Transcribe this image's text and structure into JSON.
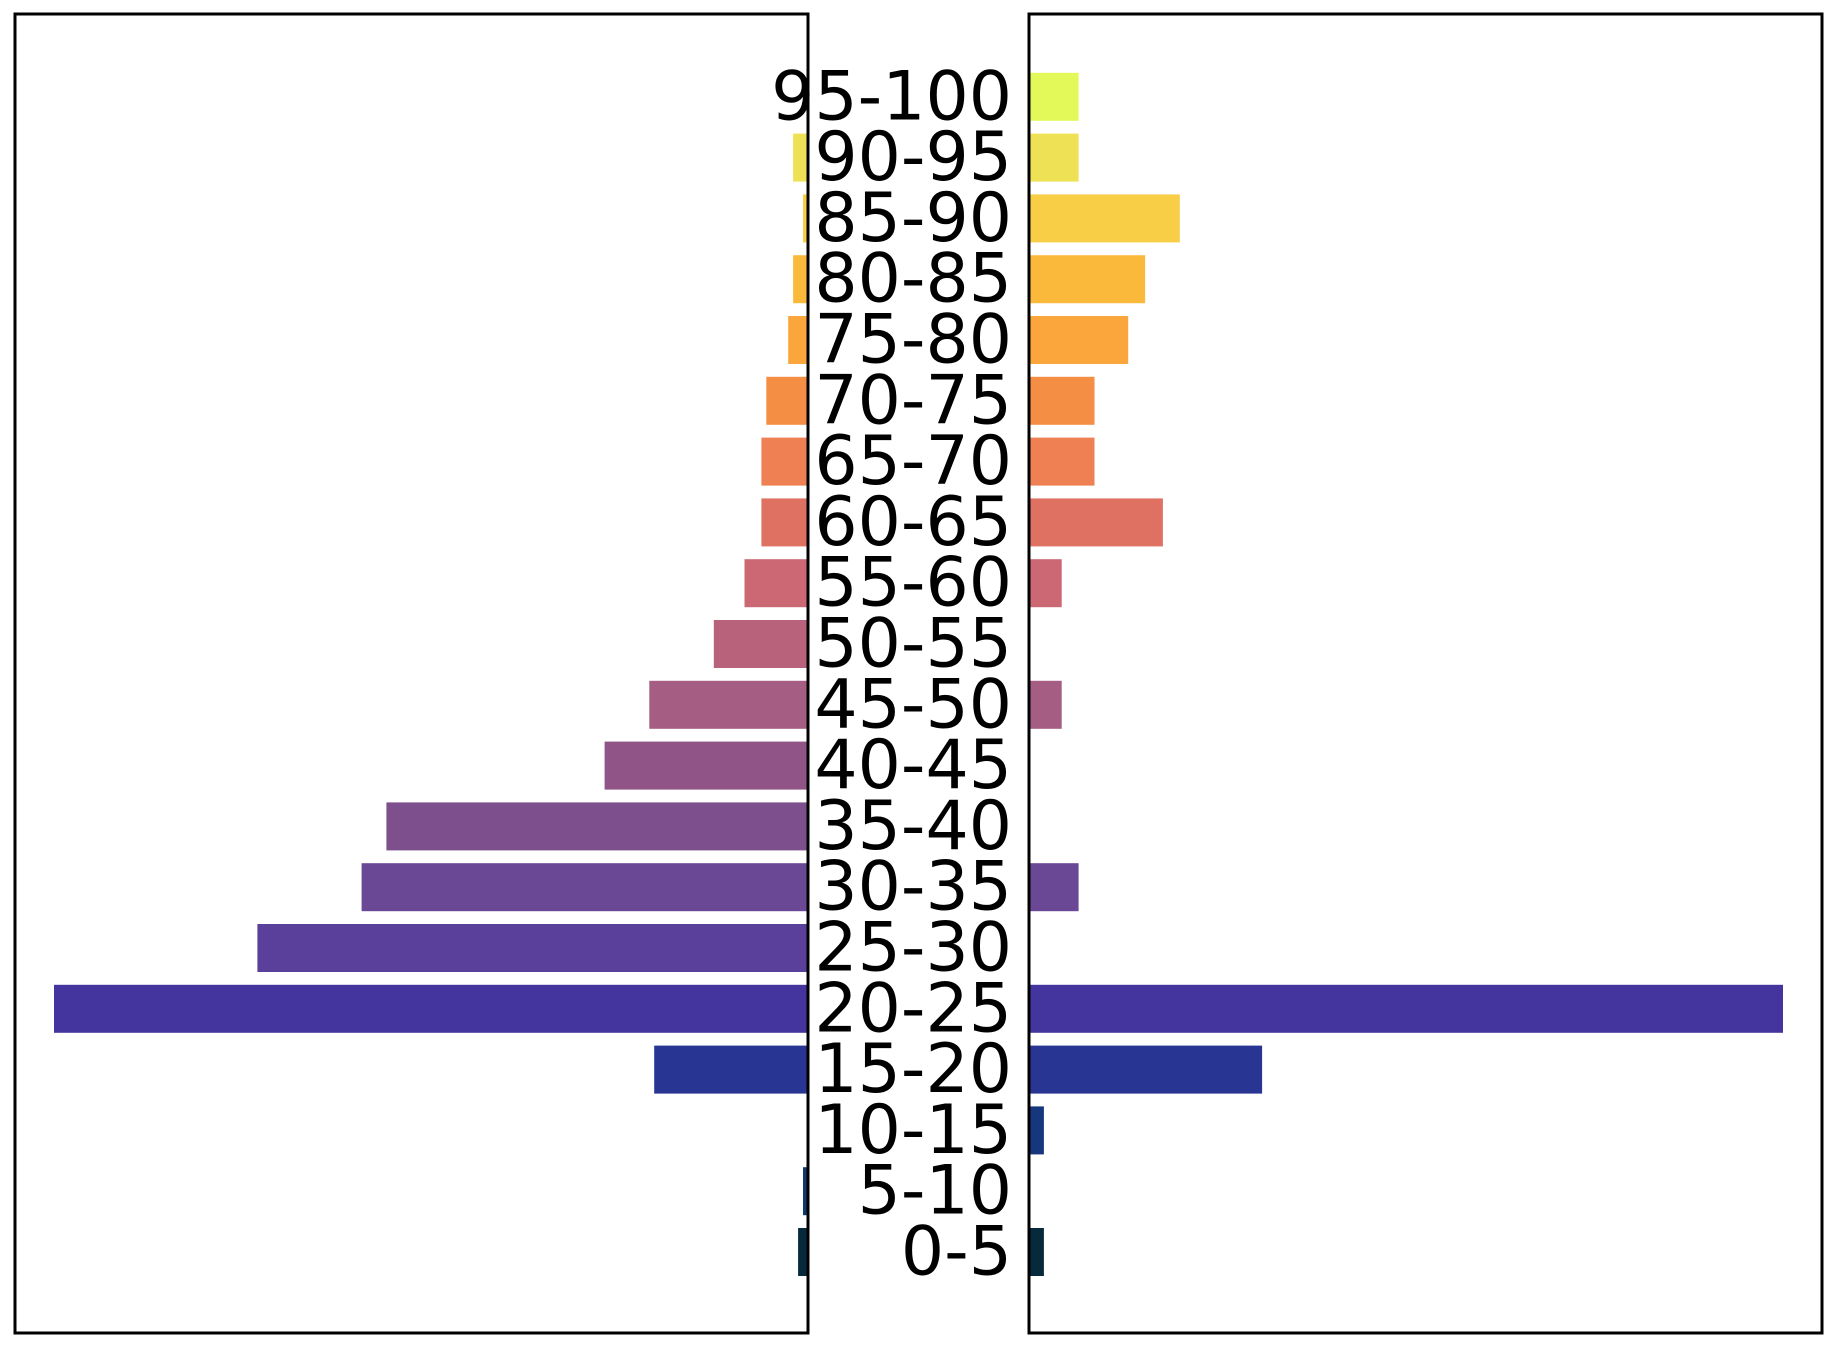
{
  "chart_data": {
    "type": "bar",
    "layout": "population-pyramid",
    "title": "",
    "xlabel": "",
    "ylabel": "",
    "categories": [
      "0-5",
      "5-10",
      "10-15",
      "15-20",
      "20-25",
      "25-30",
      "30-35",
      "35-40",
      "40-45",
      "45-50",
      "50-55",
      "55-60",
      "60-65",
      "65-70",
      "70-75",
      "75-80",
      "80-85",
      "85-90",
      "90-95",
      "95-100"
    ],
    "colors": [
      "#062a3b",
      "#0e3b6c",
      "#16377d",
      "#283593",
      "#44349e",
      "#5a3f9b",
      "#6a4895",
      "#7d4f8c",
      "#905586",
      "#a55d83",
      "#b8627b",
      "#cb6874",
      "#df7163",
      "#ee8054",
      "#f58e45",
      "#faa63c",
      "#fbb93b",
      "#f7ce45",
      "#efe155",
      "#e3f95a"
    ],
    "series": [
      {
        "side": "left",
        "values": [
          1.0,
          0.5,
          0,
          15.5,
          76,
          55.5,
          45,
          42.5,
          20.5,
          16,
          9.5,
          6.4,
          4.7,
          4.7,
          4.2,
          2.0,
          1.5,
          0.5,
          1.5,
          0
        ],
        "xlim": [
          76,
          0
        ]
      },
      {
        "side": "right",
        "values": [
          1.5,
          0,
          1.5,
          23.5,
          76,
          0,
          5,
          0,
          0,
          3.3,
          0,
          3.3,
          13.5,
          6.6,
          6.6,
          10,
          11.7,
          15.2,
          5,
          5
        ],
        "xlim": [
          0,
          76
        ]
      }
    ],
    "grid": false,
    "legend": "none"
  }
}
